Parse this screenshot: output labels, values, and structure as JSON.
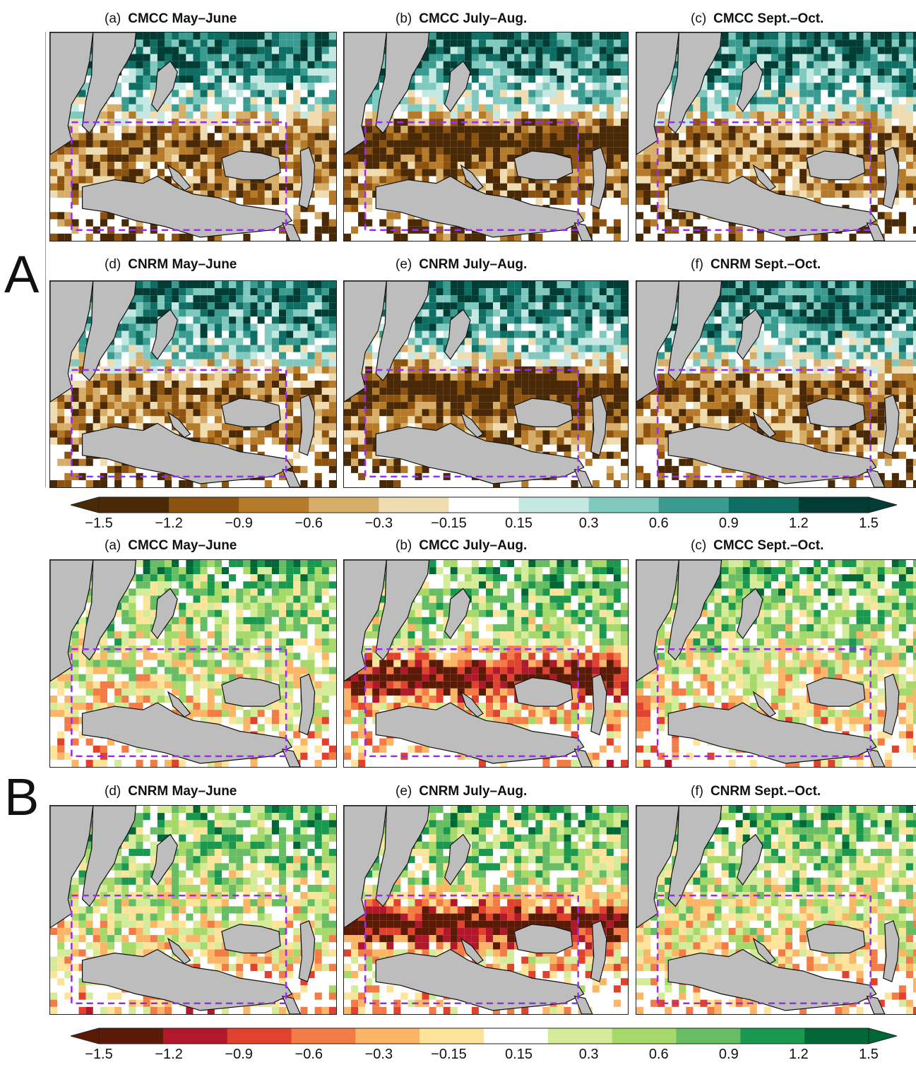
{
  "figure": {
    "sections": [
      {
        "letter": "A",
        "colormap": "brown-teal",
        "panels": [
          {
            "tag": "(a)",
            "title": "CMCC May–June"
          },
          {
            "tag": "(b)",
            "title": "CMCC July–Aug."
          },
          {
            "tag": "(c)",
            "title": "CMCC Sept.–Oct."
          },
          {
            "tag": "(d)",
            "title": "CNRM May–June"
          },
          {
            "tag": "(e)",
            "title": "CNRM July–Aug."
          },
          {
            "tag": "(f)",
            "title": "CNRM Sept.–Oct."
          }
        ],
        "colorbar": {
          "ticks": [
            "−1.5",
            "−1.2",
            "−0.9",
            "−0.6",
            "−0.3",
            "−0.15",
            "0.15",
            "0.3",
            "0.6",
            "0.9",
            "1.2",
            "1.5"
          ],
          "colors": [
            "#4a2a06",
            "#8c520f",
            "#b57a2a",
            "#d6ae6a",
            "#efdcb1",
            "#ffffff",
            "#c5e8e3",
            "#80c9bf",
            "#3a9c91",
            "#0f6e64",
            "#013d35"
          ]
        }
      },
      {
        "letter": "B",
        "colormap": "red-green",
        "panels": [
          {
            "tag": "(a)",
            "title": "CMCC May–June"
          },
          {
            "tag": "(b)",
            "title": "CMCC July–Aug."
          },
          {
            "tag": "(c)",
            "title": "CMCC Sept.–Oct."
          },
          {
            "tag": "(d)",
            "title": "CNRM May–June"
          },
          {
            "tag": "(e)",
            "title": "CNRM July–Aug."
          },
          {
            "tag": "(f)",
            "title": "CNRM Sept.–Oct."
          }
        ],
        "colorbar": {
          "ticks": [
            "−1.5",
            "−1.2",
            "−0.9",
            "−0.6",
            "−0.3",
            "−0.15",
            "0.15",
            "0.3",
            "0.6",
            "0.9",
            "1.2",
            "1.5"
          ],
          "colors": [
            "#5a1a05",
            "#b2182b",
            "#e0422e",
            "#f37b45",
            "#fbb567",
            "#fde49a",
            "#ffffff",
            "#d4ec9a",
            "#a6d96a",
            "#66bd63",
            "#1a9850",
            "#006837"
          ]
        }
      }
    ],
    "colors": {
      "land_mask": "#bdbdbd",
      "region_box": "#9a2ee6",
      "coastline": "#111111"
    }
  }
}
